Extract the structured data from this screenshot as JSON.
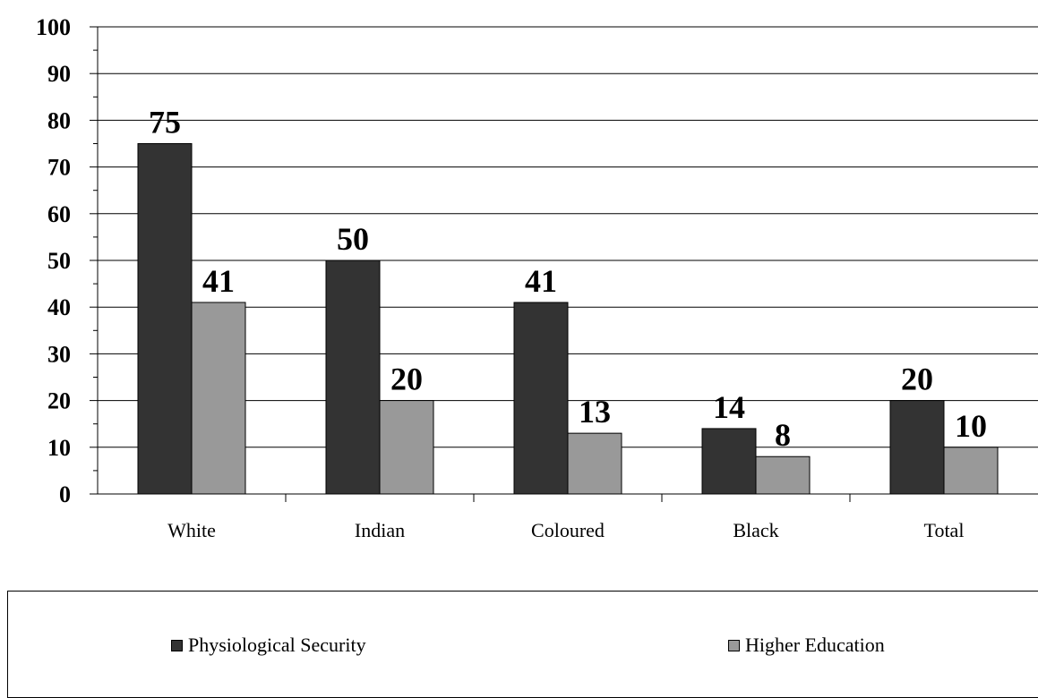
{
  "chart_data": {
    "type": "bar",
    "categories": [
      "White",
      "Indian",
      "Coloured",
      "Black",
      "Total"
    ],
    "series": [
      {
        "name": "Physiological Security",
        "color": "#333333",
        "values": [
          75,
          50,
          41,
          14,
          20
        ]
      },
      {
        "name": "Higher Education",
        "color": "#999999",
        "values": [
          41,
          20,
          13,
          8,
          10
        ]
      }
    ],
    "ylim": [
      0,
      100
    ],
    "yticks": [
      0,
      10,
      20,
      30,
      40,
      50,
      60,
      70,
      80,
      90,
      100
    ],
    "grid": true,
    "data_labels": true,
    "legend_placement": "bottom",
    "title": "",
    "xlabel": "",
    "ylabel": ""
  }
}
